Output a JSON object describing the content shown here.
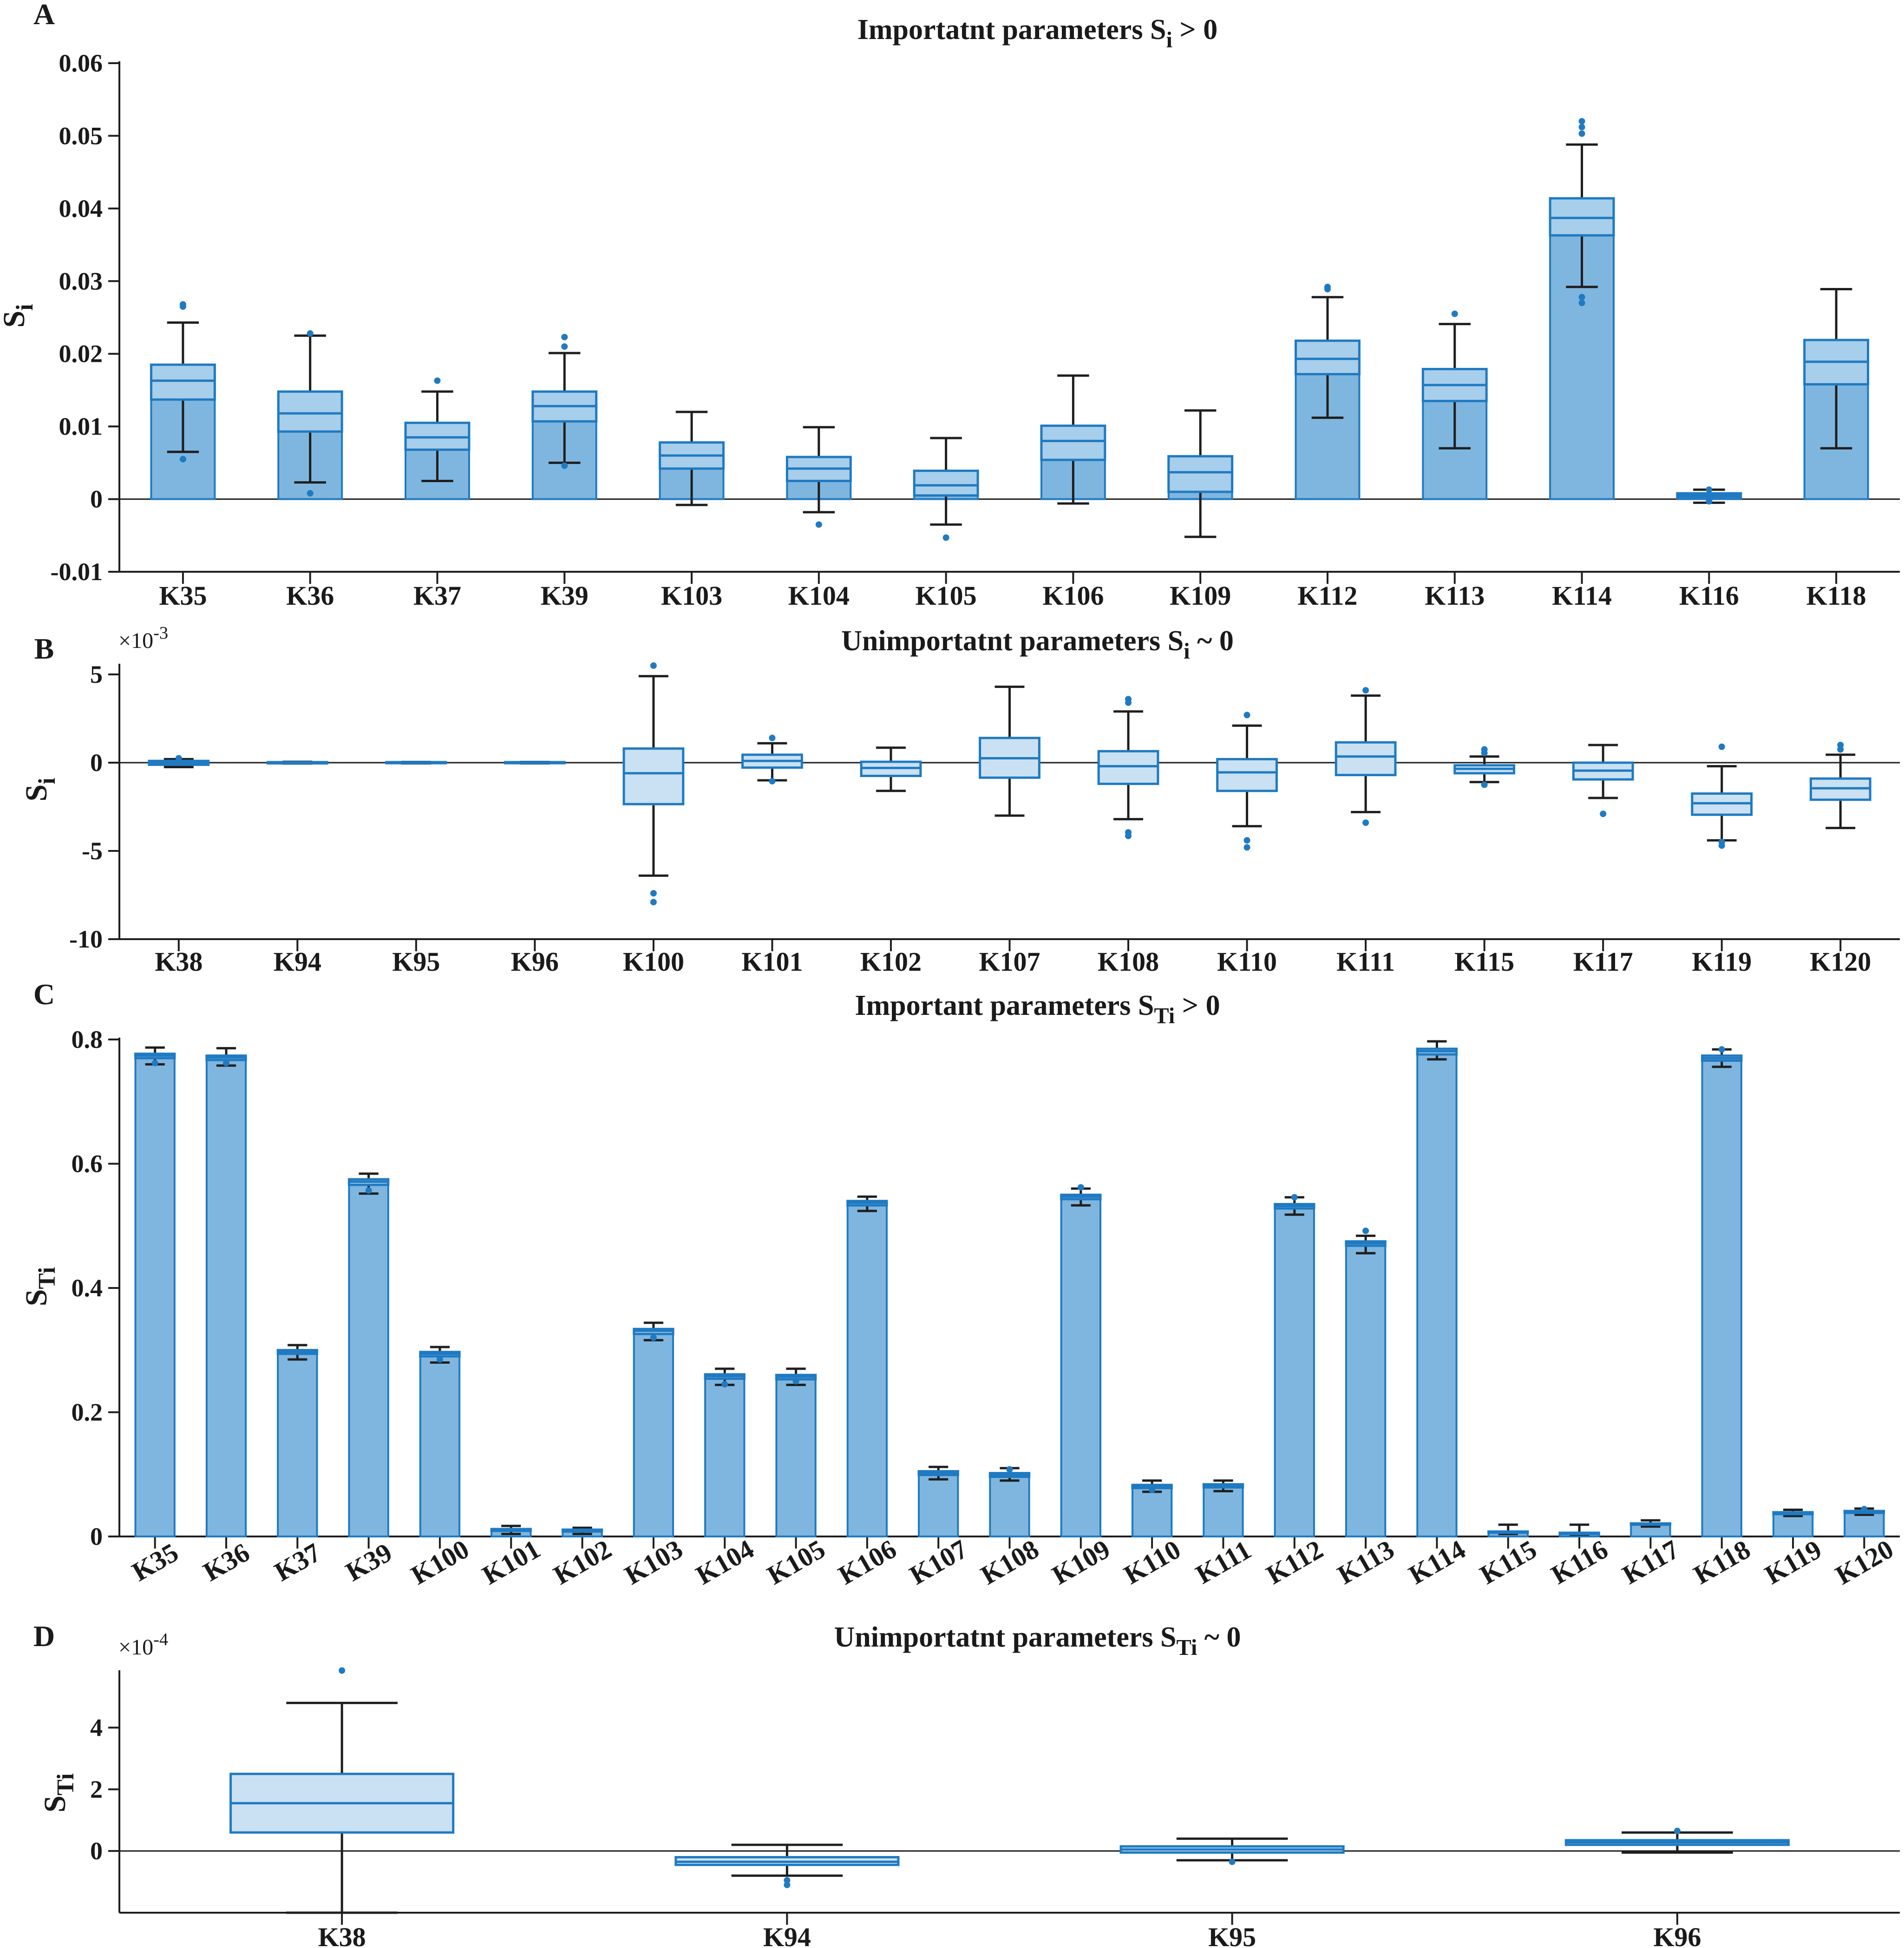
{
  "colors": {
    "bar_fill": "#7fb6df",
    "bar_stroke": "#1f7ac2",
    "box_fill": "#c9e1f2",
    "whisker": "#1e1e1e",
    "outlier": "#1f7ac2",
    "axis": "#1e1e1e"
  },
  "chart_data": [
    {
      "panel": "A",
      "type": "box",
      "title_main": "Importatnt parameters S",
      "title_sub": "i",
      "title_tail": " > 0",
      "ylabel_main": "S",
      "ylabel_sub": "i",
      "exponent_label": "",
      "ylim": [
        -0.01,
        0.06
      ],
      "yticks": [
        -0.01,
        0,
        0.01,
        0.02,
        0.03,
        0.04,
        0.05,
        0.06
      ],
      "ytick_labels": [
        "-0.01",
        "0",
        "0.01",
        "0.02",
        "0.03",
        "0.04",
        "0.05",
        "0.06"
      ],
      "bars": true,
      "categories": [
        "K35",
        "K36",
        "K37",
        "K39",
        "K103",
        "K104",
        "K105",
        "K106",
        "K109",
        "K112",
        "K113",
        "K114",
        "K116",
        "K118"
      ],
      "means": [
        0.0185,
        0.0148,
        0.0105,
        0.0148,
        0.0078,
        0.0058,
        0.0039,
        0.0101,
        0.0059,
        0.0218,
        0.0179,
        0.0414,
        0.0008,
        0.0219
      ],
      "q1": [
        0.0137,
        0.0093,
        0.0068,
        0.0107,
        0.0042,
        0.0025,
        0.0005,
        0.0054,
        0.001,
        0.0172,
        0.0135,
        0.0363,
        0.0003,
        0.0158
      ],
      "median": [
        0.0163,
        0.0118,
        0.0085,
        0.0128,
        0.006,
        0.0042,
        0.0019,
        0.008,
        0.0037,
        0.0193,
        0.0157,
        0.0387,
        0.0005,
        0.0189
      ],
      "q3": [
        0.0185,
        0.0148,
        0.0105,
        0.0148,
        0.0078,
        0.0058,
        0.0039,
        0.0101,
        0.0059,
        0.0218,
        0.0179,
        0.0414,
        0.0008,
        0.0219
      ],
      "whisker_low": [
        0.0065,
        0.0023,
        0.0025,
        0.005,
        -0.0008,
        -0.0018,
        -0.0035,
        -0.0006,
        -0.0052,
        0.0112,
        0.007,
        0.0292,
        -0.0005,
        0.007
      ],
      "whisker_high": [
        0.0243,
        0.0225,
        0.0148,
        0.0201,
        0.012,
        0.0099,
        0.0084,
        0.017,
        0.0122,
        0.0278,
        0.0241,
        0.0488,
        0.0013,
        0.0289
      ],
      "outliers": [
        [
          0.0268,
          0.0265,
          0.0055
        ],
        [
          0.0228,
          0.0008
        ],
        [
          0.0163
        ],
        [
          0.0223,
          0.021,
          0.0046
        ],
        [],
        [
          -0.0035
        ],
        [
          -0.0053
        ],
        [],
        [],
        [
          0.0292,
          0.0289
        ],
        [
          0.0255
        ],
        [
          0.052,
          0.0512,
          0.0503,
          0.0278,
          0.027
        ],
        [
          0.0013,
          -0.0003
        ],
        []
      ]
    },
    {
      "panel": "B",
      "type": "box",
      "title_main": "Unimportatnt parameters S",
      "title_sub": "i",
      "title_tail": " ~ 0",
      "ylabel_main": "S",
      "ylabel_sub": "i",
      "exponent_label": "×10",
      "exponent_power": "-3",
      "ylim": [
        -10,
        5.5
      ],
      "yticks": [
        -10,
        -5,
        0,
        5
      ],
      "ytick_labels": [
        "-10",
        "-5",
        "0",
        "5"
      ],
      "bars": false,
      "categories": [
        "K38",
        "K94",
        "K95",
        "K96",
        "K100",
        "K101",
        "K102",
        "K107",
        "K108",
        "K110",
        "K111",
        "K115",
        "K117",
        "K119",
        "K120"
      ],
      "q1": [
        -0.12,
        -0.04,
        -0.03,
        -0.03,
        -2.35,
        -0.28,
        -0.75,
        -0.85,
        -1.2,
        -1.6,
        -0.7,
        -0.6,
        -0.95,
        -2.95,
        -2.1
      ],
      "median": [
        0.0,
        0.0,
        0.0,
        0.0,
        -0.6,
        0.1,
        -0.3,
        0.25,
        -0.2,
        -0.55,
        0.35,
        -0.35,
        -0.45,
        -2.3,
        -1.45
      ],
      "q3": [
        0.1,
        0.03,
        0.03,
        0.03,
        0.8,
        0.45,
        0.05,
        1.4,
        0.65,
        0.2,
        1.15,
        -0.15,
        0.0,
        -1.75,
        -0.9
      ],
      "whisker_low": [
        -0.25,
        -0.05,
        -0.04,
        -0.04,
        -6.4,
        -1.0,
        -1.6,
        -3.0,
        -3.2,
        -3.6,
        -2.8,
        -1.1,
        -2.0,
        -4.4,
        -3.7
      ],
      "whisker_high": [
        0.2,
        0.05,
        0.04,
        0.04,
        4.9,
        1.1,
        0.85,
        4.3,
        2.9,
        2.1,
        3.8,
        0.35,
        1.0,
        -0.2,
        0.45
      ],
      "outliers": [
        [
          0.25
        ],
        [],
        [],
        [],
        [
          5.5,
          -7.4,
          -7.9
        ],
        [
          1.4,
          -1.05
        ],
        [],
        [],
        [
          3.6,
          3.4,
          -3.95,
          -4.15
        ],
        [
          2.7,
          -4.4,
          -4.8
        ],
        [
          4.1,
          -3.4
        ],
        [
          0.75,
          0.55,
          -1.25
        ],
        [
          -2.9
        ],
        [
          0.9,
          -4.5,
          -4.7
        ],
        [
          1.0,
          0.75
        ]
      ]
    },
    {
      "panel": "C",
      "type": "box",
      "title_main": "Important parameters S",
      "title_sub": "Ti",
      "title_tail": " > 0",
      "ylabel_main": "S",
      "ylabel_sub": "Ti",
      "exponent_label": "",
      "ylim": [
        0,
        0.8
      ],
      "yticks": [
        0,
        0.2,
        0.4,
        0.6,
        0.8
      ],
      "ytick_labels": [
        "0",
        "0.2",
        "0.4",
        "0.6",
        "0.8"
      ],
      "bars": true,
      "rotated_labels": true,
      "categories": [
        "K35",
        "K36",
        "K37",
        "K39",
        "K100",
        "K101",
        "K102",
        "K103",
        "K104",
        "K105",
        "K106",
        "K107",
        "K108",
        "K109",
        "K110",
        "K111",
        "K112",
        "K113",
        "K114",
        "K115",
        "K116",
        "K117",
        "K118",
        "K119",
        "K120"
      ],
      "means": [
        0.777,
        0.774,
        0.3,
        0.575,
        0.297,
        0.012,
        0.011,
        0.334,
        0.261,
        0.26,
        0.54,
        0.105,
        0.102,
        0.55,
        0.083,
        0.084,
        0.535,
        0.475,
        0.785,
        0.008,
        0.006,
        0.021,
        0.774,
        0.039,
        0.041
      ],
      "q1": [
        0.77,
        0.767,
        0.294,
        0.566,
        0.29,
        0.009,
        0.008,
        0.326,
        0.254,
        0.253,
        0.533,
        0.099,
        0.096,
        0.543,
        0.078,
        0.079,
        0.528,
        0.468,
        0.776,
        0.006,
        0.004,
        0.019,
        0.766,
        0.036,
        0.038
      ],
      "median": [
        0.774,
        0.771,
        0.297,
        0.571,
        0.294,
        0.011,
        0.01,
        0.331,
        0.258,
        0.257,
        0.537,
        0.102,
        0.099,
        0.547,
        0.081,
        0.082,
        0.532,
        0.472,
        0.781,
        0.007,
        0.005,
        0.02,
        0.77,
        0.038,
        0.04
      ],
      "q3": [
        0.777,
        0.774,
        0.3,
        0.575,
        0.297,
        0.012,
        0.011,
        0.334,
        0.261,
        0.26,
        0.54,
        0.105,
        0.102,
        0.55,
        0.083,
        0.084,
        0.535,
        0.475,
        0.785,
        0.008,
        0.006,
        0.021,
        0.774,
        0.039,
        0.041
      ],
      "whisker_low": [
        0.76,
        0.758,
        0.285,
        0.552,
        0.28,
        0.004,
        0.004,
        0.316,
        0.244,
        0.244,
        0.524,
        0.092,
        0.09,
        0.533,
        0.072,
        0.073,
        0.518,
        0.456,
        0.768,
        0.004,
        0.003,
        0.016,
        0.756,
        0.033,
        0.035
      ],
      "whisker_high": [
        0.787,
        0.786,
        0.308,
        0.584,
        0.305,
        0.017,
        0.014,
        0.344,
        0.27,
        0.27,
        0.547,
        0.112,
        0.11,
        0.56,
        0.09,
        0.09,
        0.546,
        0.484,
        0.797,
        0.019,
        0.019,
        0.026,
        0.784,
        0.043,
        0.045
      ],
      "outliers": [
        [
          0.762
        ],
        [
          0.762
        ],
        [],
        [
          0.557
        ],
        [
          0.285
        ],
        [],
        [],
        [
          0.32
        ],
        [
          0.245
        ],
        [
          0.25
        ],
        [],
        [],
        [
          0.108
        ],
        [
          0.562
        ],
        [
          0.075
        ],
        [],
        [
          0.546
        ],
        [
          0.492
        ],
        [],
        [],
        [],
        [],
        [
          0.784
        ],
        [],
        [
          0.044
        ]
      ]
    },
    {
      "panel": "D",
      "type": "box",
      "title_main": "Unimportatnt parameters S",
      "title_sub": "Ti",
      "title_tail": " ~ 0",
      "ylabel_main": "S",
      "ylabel_sub": "Ti",
      "exponent_label": "×10",
      "exponent_power": "-4",
      "ylim": [
        -2,
        5.8
      ],
      "yticks": [
        0,
        2,
        4
      ],
      "ytick_labels": [
        "0",
        "2",
        "4"
      ],
      "bars": false,
      "categories": [
        "K38",
        "K94",
        "K95",
        "K96"
      ],
      "q1": [
        0.6,
        -0.45,
        -0.05,
        0.2
      ],
      "median": [
        1.55,
        -0.35,
        0.05,
        0.28
      ],
      "q3": [
        2.5,
        -0.2,
        0.15,
        0.35
      ],
      "whisker_low": [
        -2.0,
        -0.8,
        -0.3,
        -0.05
      ],
      "whisker_high": [
        4.8,
        0.2,
        0.4,
        0.6
      ],
      "outliers": [
        [
          5.85
        ],
        [
          -0.95,
          -1.1
        ],
        [
          -0.35
        ],
        [
          0.65
        ]
      ]
    }
  ],
  "panels": {
    "A": {
      "letter": "A"
    },
    "B": {
      "letter": "B"
    },
    "C": {
      "letter": "C"
    },
    "D": {
      "letter": "D"
    }
  }
}
